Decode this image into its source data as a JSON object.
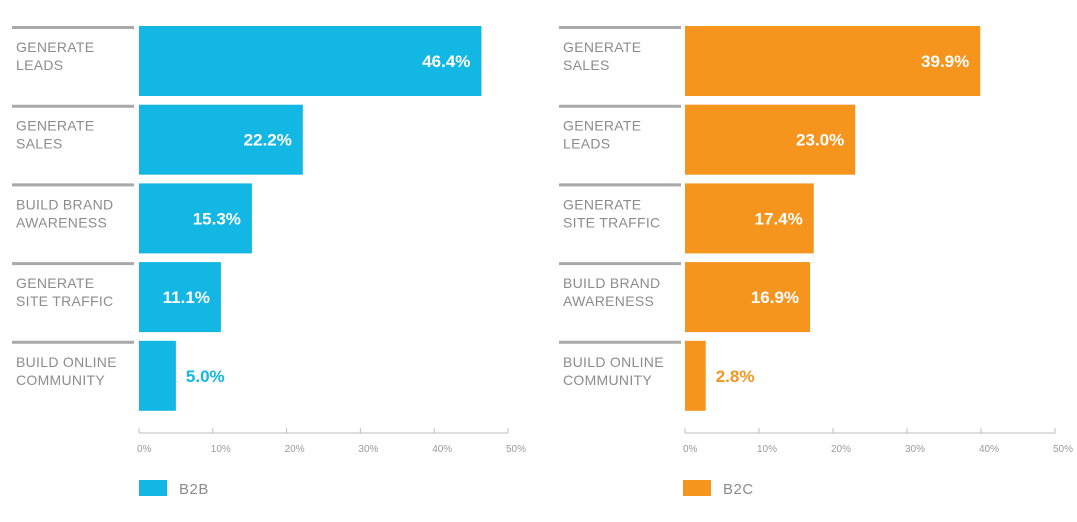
{
  "chart_data": [
    {
      "type": "bar",
      "orientation": "horizontal",
      "categories": [
        [
          "GENERATE",
          "LEADS"
        ],
        [
          "GENERATE",
          "SALES"
        ],
        [
          "BUILD BRAND",
          "AWARENESS"
        ],
        [
          "GENERATE",
          "SITE TRAFFIC"
        ],
        [
          "BUILD ONLINE",
          "COMMUNITY"
        ]
      ],
      "values": [
        46.4,
        22.2,
        15.3,
        11.1,
        5.0
      ],
      "value_labels": [
        "46.4%",
        "22.2%",
        "15.3%",
        "11.1%",
        "5.0%"
      ],
      "xlim": [
        0,
        50
      ],
      "ticks": [
        "0%",
        "10%",
        "20%",
        "30%",
        "40%",
        "50%"
      ],
      "color": "#12b8e3",
      "legend": "B2B"
    },
    {
      "type": "bar",
      "orientation": "horizontal",
      "categories": [
        [
          "GENERATE",
          "SALES"
        ],
        [
          "GENERATE",
          "LEADS"
        ],
        [
          "GENERATE",
          "SITE TRAFFIC"
        ],
        [
          "BUILD BRAND",
          "AWARENESS"
        ],
        [
          "BUILD ONLINE",
          "COMMUNITY"
        ]
      ],
      "values": [
        39.9,
        23.0,
        17.4,
        16.9,
        2.8
      ],
      "value_labels": [
        "39.9%",
        "23.0%",
        "17.4%",
        "16.9%",
        "2.8%"
      ],
      "xlim": [
        0,
        50
      ],
      "ticks": [
        "0%",
        "10%",
        "20%",
        "30%",
        "40%",
        "50%"
      ],
      "color": "#f5951e",
      "legend": "B2C"
    }
  ],
  "colors": {
    "separator": "#a9a9a9",
    "label_text": "#8c8c8c",
    "axis": "#bdbdbd",
    "value_inside": "#ffffff"
  }
}
